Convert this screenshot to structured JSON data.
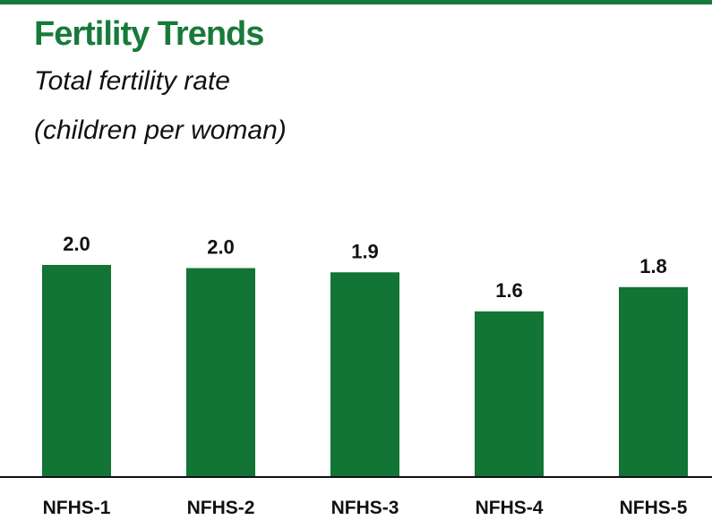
{
  "chart_data": {
    "type": "bar",
    "title": "Fertility Trends",
    "subtitle": [
      "Total fertility rate",
      "(children per woman)"
    ],
    "categories": [
      "NFHS-1",
      "NFHS-2",
      "NFHS-3",
      "NFHS-4",
      "NFHS-5"
    ],
    "values": [
      2.0,
      1.97,
      1.93,
      1.56,
      1.79
    ],
    "value_labels": [
      "2.0",
      "2.0",
      "1.9",
      "1.6",
      "1.8"
    ],
    "color": "#127435"
  }
}
